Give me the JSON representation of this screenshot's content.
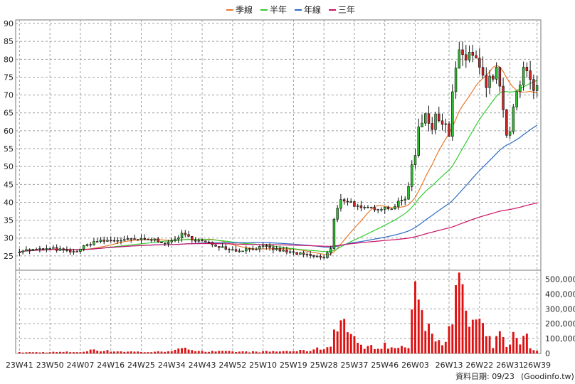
{
  "colors": {
    "up": "#2fbf2f",
    "down": "#cc2222",
    "volume": "#dd1111",
    "ma_quarter": "#e87a2a",
    "ma_half": "#33cc33",
    "ma_year": "#2b6cc4",
    "ma_three_year": "#cc1166",
    "grid": "#a0a0a0"
  },
  "legend": [
    {
      "label": "季線",
      "color": "#e87a2a"
    },
    {
      "label": "半年",
      "color": "#33cc33"
    },
    {
      "label": "年線",
      "color": "#2b6cc4"
    },
    {
      "label": "三年",
      "color": "#cc1166"
    }
  ],
  "credit": {
    "date_label": "資料日期: 09/23",
    "site": "(Goodinfo.tw)"
  },
  "chart_data": {
    "type": "candlestick",
    "price_axis": {
      "ticks": [
        25,
        30,
        35,
        40,
        45,
        50,
        55,
        60,
        65,
        70,
        75,
        80,
        85,
        90
      ],
      "range": [
        21,
        91
      ]
    },
    "volume_axis": {
      "ticks": [
        0,
        100000,
        200000,
        300000,
        400000,
        500000
      ],
      "tick_labels": [
        "0",
        "100,000",
        "200,000",
        "300,000",
        "400,000",
        "500,000"
      ],
      "range": [
        0,
        560000
      ]
    },
    "x_tick_labels": [
      "23W41",
      "23W50",
      "24W07",
      "24W16",
      "24W25",
      "24W34",
      "24W43",
      "24W52",
      "25W10",
      "25W19",
      "25W28",
      "25W37",
      "25W46",
      "26W03",
      "26W13",
      "26W22",
      "26W31",
      "26W39"
    ],
    "x_tick_weeks": [
      0,
      9,
      18,
      27,
      36,
      45,
      54,
      63,
      72,
      81,
      90,
      99,
      108,
      117,
      127,
      136,
      145,
      153
    ],
    "grid": true,
    "legend_position": "top-center",
    "price_key_points": [
      [
        0,
        26.5
      ],
      [
        10,
        27
      ],
      [
        16,
        26
      ],
      [
        22,
        29
      ],
      [
        30,
        29.5
      ],
      [
        40,
        29.5
      ],
      [
        44,
        28.5
      ],
      [
        48,
        31
      ],
      [
        52,
        29.5
      ],
      [
        58,
        28
      ],
      [
        64,
        26.5
      ],
      [
        72,
        27.5
      ],
      [
        80,
        26
      ],
      [
        86,
        25
      ],
      [
        90,
        24.5
      ],
      [
        92,
        27
      ],
      [
        93,
        35
      ],
      [
        95,
        41
      ],
      [
        98,
        40
      ],
      [
        101,
        38
      ],
      [
        106,
        38.5
      ],
      [
        110,
        38.5
      ],
      [
        114,
        41
      ],
      [
        116,
        49
      ],
      [
        118,
        61
      ],
      [
        120,
        67
      ],
      [
        122,
        60
      ],
      [
        125,
        65
      ],
      [
        127,
        60
      ],
      [
        129,
        78
      ],
      [
        133,
        82
      ],
      [
        135,
        79
      ],
      [
        137,
        73
      ],
      [
        139,
        72
      ],
      [
        141,
        79
      ],
      [
        143,
        63
      ],
      [
        145,
        58
      ],
      [
        147,
        70
      ],
      [
        149,
        75
      ],
      [
        152,
        72
      ],
      [
        153,
        72
      ]
    ],
    "volume_key_points": [
      [
        0,
        8000
      ],
      [
        20,
        12000
      ],
      [
        21,
        35000
      ],
      [
        22,
        30000
      ],
      [
        25,
        20000
      ],
      [
        30,
        15000
      ],
      [
        40,
        10000
      ],
      [
        50,
        35000
      ],
      [
        55,
        15000
      ],
      [
        70,
        12000
      ],
      [
        85,
        20000
      ],
      [
        92,
        50000
      ],
      [
        93,
        200000
      ],
      [
        94,
        260000
      ],
      [
        97,
        200000
      ],
      [
        100,
        60000
      ],
      [
        105,
        45000
      ],
      [
        108,
        60000
      ],
      [
        110,
        40000
      ],
      [
        115,
        50000
      ],
      [
        116,
        240000
      ],
      [
        118,
        570000
      ],
      [
        119,
        300000
      ],
      [
        122,
        150000
      ],
      [
        125,
        100000
      ],
      [
        128,
        180000
      ],
      [
        129,
        400000
      ],
      [
        130,
        490000
      ],
      [
        131,
        490000
      ],
      [
        133,
        200000
      ],
      [
        135,
        230000
      ],
      [
        136,
        200000
      ],
      [
        138,
        130000
      ],
      [
        140,
        60000
      ],
      [
        142,
        140000
      ],
      [
        144,
        60000
      ],
      [
        146,
        130000
      ],
      [
        148,
        70000
      ],
      [
        150,
        180000
      ],
      [
        151,
        40000
      ],
      [
        153,
        25000
      ]
    ],
    "n_weeks": 154
  }
}
